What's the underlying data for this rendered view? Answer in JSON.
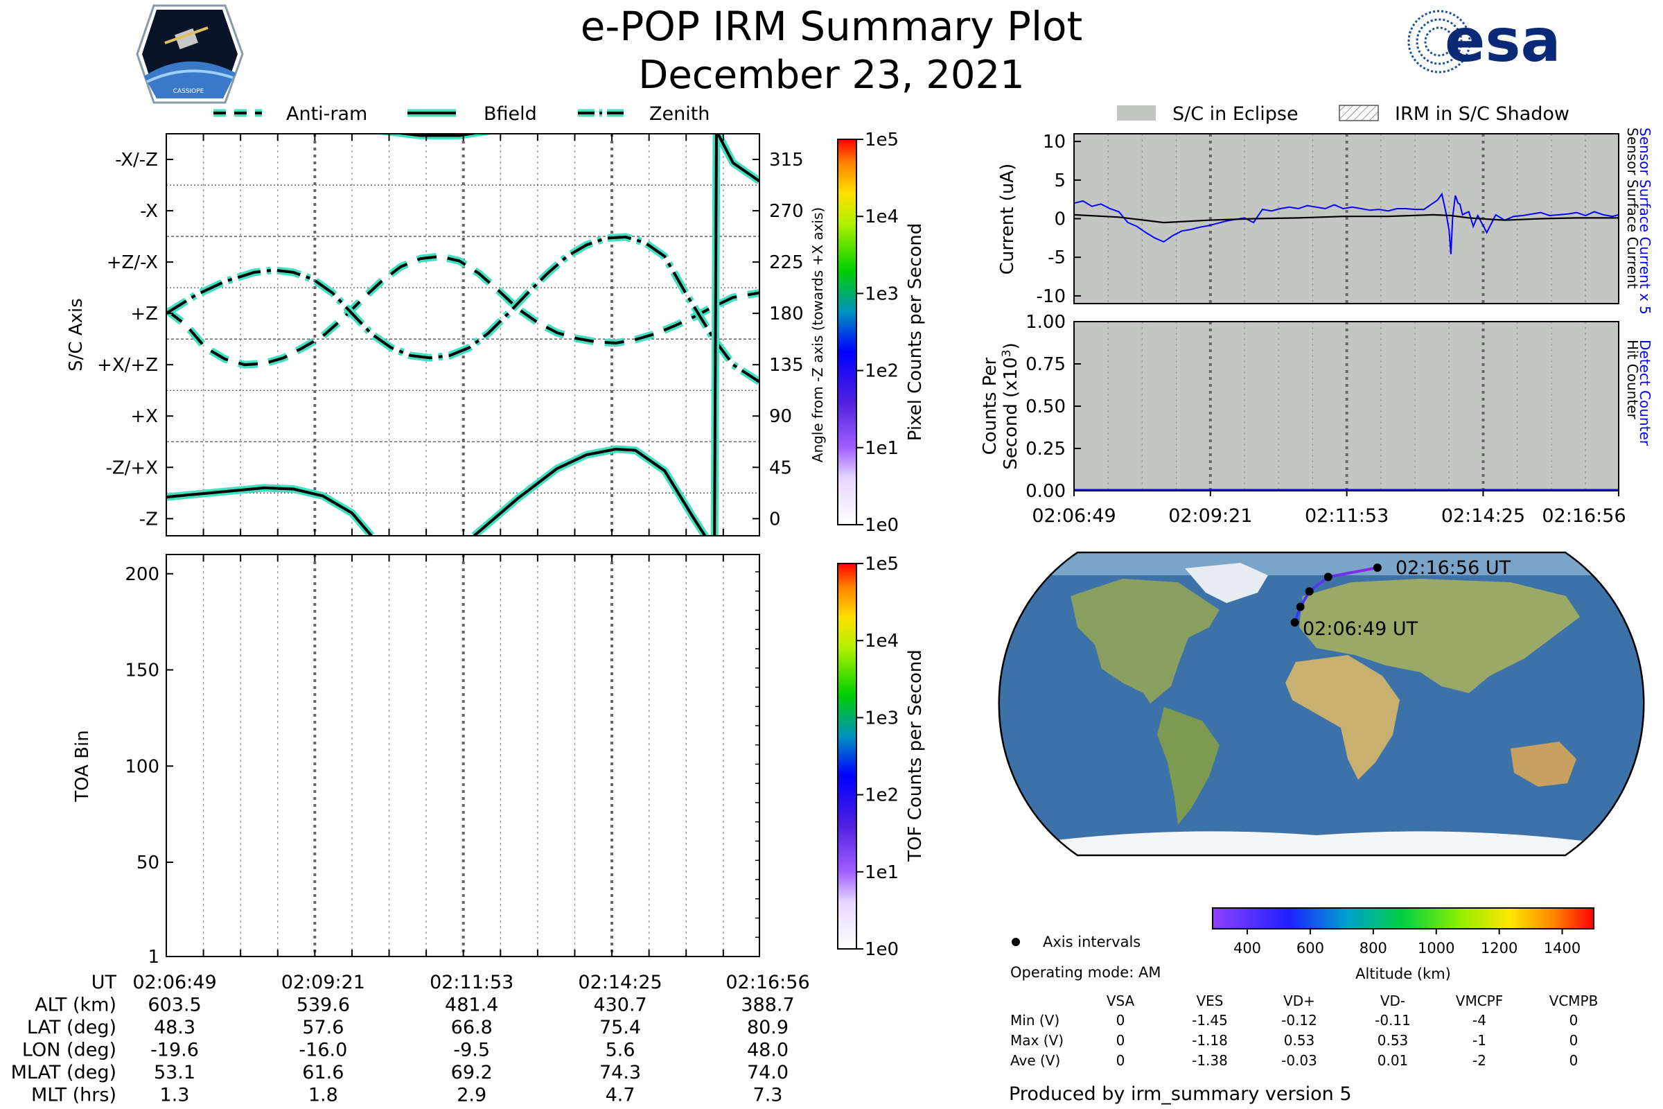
{
  "header": {
    "title": "e-POP IRM Summary Plot",
    "date": "December 23, 2021",
    "left_logo": "cassiope-mission-logo",
    "left_logo_caption": "CASSIOPE",
    "right_logo": "esa-logo",
    "right_logo_text": "esa"
  },
  "colors": {
    "teal": "#40e0c0",
    "eclipse_gray": "#c4c6c4",
    "sensor_blue": "#0000ff",
    "map_track_start": "#2b3cff",
    "map_track_end": "#8a2be2"
  },
  "chart_data": [
    {
      "id": "sc-axis",
      "type": "line",
      "ylabel_left": "S/C Axis",
      "ylabel_right": "Angle from -Z axis (towards +X axis)",
      "ylim": [
        -15,
        337.5
      ],
      "left_ticks": [
        {
          "value": 0,
          "label": "-Z"
        },
        {
          "value": 45,
          "label": "-Z/+X"
        },
        {
          "value": 90,
          "label": "+X"
        },
        {
          "value": 135,
          "label": "+X/+Z"
        },
        {
          "value": 180,
          "label": "+Z"
        },
        {
          "value": 225,
          "label": "+Z/-X"
        },
        {
          "value": 270,
          "label": "-X"
        },
        {
          "value": 315,
          "label": "-X/-Z"
        }
      ],
      "right_ticks": [
        0,
        45,
        90,
        135,
        180,
        225,
        270,
        315
      ],
      "xlim": [
        0,
        607
      ],
      "x_unit": "seconds after 02:06:49 UT",
      "major_x": [
        0,
        152,
        304,
        456,
        607
      ],
      "minor_x": [
        38,
        76,
        114,
        190,
        228,
        266,
        342,
        380,
        418,
        494,
        532,
        570
      ],
      "legend": [
        "Anti-ram",
        "Bfield",
        "Zenith"
      ],
      "series": [
        {
          "name": "Anti-ram",
          "style": "dashed",
          "x": [
            0,
            20,
            40,
            60,
            80,
            100,
            120,
            140,
            160,
            180,
            200,
            220,
            240,
            260,
            280,
            300,
            320,
            340,
            360,
            380,
            400,
            420,
            440,
            460,
            480,
            500,
            520,
            540,
            560,
            580,
            607
          ],
          "y": [
            183,
            170,
            150,
            140,
            135,
            136,
            141,
            150,
            160,
            175,
            192,
            208,
            221,
            228,
            230,
            226,
            215,
            200,
            184,
            172,
            163,
            158,
            155,
            154,
            157,
            162,
            169,
            177,
            186,
            194,
            198
          ]
        },
        {
          "name": "Zenith",
          "style": "dashdot",
          "x": [
            0,
            30,
            60,
            90,
            110,
            130,
            150,
            170,
            190,
            210,
            230,
            250,
            270,
            290,
            310,
            330,
            350,
            370,
            390,
            410,
            430,
            450,
            470,
            490,
            510,
            530,
            560,
            580,
            607
          ],
          "y": [
            180,
            196,
            208,
            216,
            218,
            216,
            210,
            198,
            180,
            162,
            150,
            143,
            141,
            143,
            150,
            163,
            180,
            198,
            215,
            230,
            240,
            246,
            247,
            242,
            230,
            200,
            158,
            135,
            120
          ]
        },
        {
          "name": "Bfield",
          "style": "solid",
          "segments": [
            {
              "x": [
                0,
                50,
                100,
                130,
                160,
                190,
                210
              ],
              "y": [
                19,
                23,
                27,
                26,
                20,
                5,
                -15
              ]
            },
            {
              "x": [
                315,
                360,
                400,
                430,
                460,
                480,
                510,
                540,
                555
              ],
              "y": [
                -15,
                18,
                44,
                56,
                61,
                60,
                42,
                0,
                -20
              ]
            },
            {
              "x": [
                555,
                561,
                563,
                580,
                607
              ],
              "y": [
                -20,
                -15,
                340,
                312,
                296
              ]
            },
            {
              "x": [
                220,
                260,
                300,
                330
              ],
              "y": [
                340,
                336,
                336,
                340
              ]
            }
          ]
        }
      ]
    },
    {
      "id": "colorbar-pixel",
      "type": "heatmap",
      "label": "Pixel Counts per Second",
      "scale": "log",
      "ticks": [
        "1e0",
        "1e1",
        "1e2",
        "1e3",
        "1e4",
        "1e5"
      ]
    },
    {
      "id": "toa",
      "type": "heatmap",
      "ylabel": "TOA Bin",
      "ylim": [
        1,
        210
      ],
      "yticks": [
        1,
        50,
        100,
        150,
        200
      ],
      "values": []
    },
    {
      "id": "colorbar-tof",
      "type": "heatmap",
      "label": "TOF Counts per Second",
      "scale": "log",
      "ticks": [
        "1e0",
        "1e1",
        "1e2",
        "1e3",
        "1e4",
        "1e5"
      ]
    },
    {
      "id": "current",
      "type": "line",
      "ylabel": "Current (uA)",
      "ylim": [
        -11,
        11
      ],
      "yticks": [
        -10,
        -5,
        0,
        5,
        10
      ],
      "right_label_blue": "Sensor Surface Current x 5",
      "right_label_black": "Sensor Surface Current",
      "legend": [
        "S/C in Eclipse",
        "IRM in S/C Shadow"
      ],
      "eclipse_span": [
        0,
        607
      ],
      "series": [
        {
          "name": "Sensor Surface Current x 5",
          "color": "blue",
          "x": [
            0,
            10,
            20,
            30,
            40,
            50,
            60,
            70,
            80,
            90,
            100,
            110,
            120,
            130,
            140,
            150,
            160,
            170,
            180,
            190,
            200,
            210,
            220,
            230,
            240,
            250,
            260,
            270,
            280,
            290,
            300,
            310,
            320,
            330,
            340,
            350,
            360,
            370,
            380,
            390,
            400,
            405,
            410,
            415,
            418,
            420,
            422,
            425,
            428,
            430,
            433,
            436,
            440,
            445,
            450,
            460,
            470,
            480,
            490,
            500,
            510,
            520,
            530,
            540,
            550,
            560,
            570,
            580,
            590,
            600,
            607
          ],
          "y": [
            2,
            2.3,
            1.6,
            1.9,
            1.3,
            0.9,
            -0.5,
            -1.0,
            -1.8,
            -2.5,
            -3.0,
            -2.2,
            -1.6,
            -1.4,
            -1.1,
            -0.9,
            -0.6,
            -0.3,
            -0.1,
            0.1,
            -0.5,
            1.2,
            1.0,
            1.3,
            1.5,
            1.3,
            1.7,
            1.5,
            1.3,
            1.8,
            1.3,
            1.5,
            1.3,
            1.1,
            1.2,
            1.0,
            1.3,
            1.3,
            1.2,
            1.2,
            2.0,
            2.4,
            3.2,
            0.5,
            -1.5,
            -4.6,
            0.2,
            3.0,
            2.0,
            1.9,
            0.5,
            0.7,
            0.9,
            -1.0,
            0.4,
            -1.8,
            0.5,
            -0.2,
            0.3,
            0.4,
            0.6,
            0.8,
            0.4,
            0.5,
            0.6,
            0.8,
            0.4,
            0.9,
            0.5,
            0.3,
            0.5
          ]
        },
        {
          "name": "Sensor Surface Current",
          "color": "black",
          "x": [
            0,
            50,
            100,
            150,
            200,
            250,
            300,
            350,
            400,
            420,
            440,
            480,
            520,
            560,
            607
          ],
          "y": [
            0.5,
            0.2,
            -0.5,
            -0.2,
            0.0,
            0.1,
            0.3,
            0.3,
            0.5,
            0.4,
            0.1,
            -0.2,
            0.0,
            0.1,
            0.1
          ]
        }
      ]
    },
    {
      "id": "counts",
      "type": "line",
      "ylabel_line1": "Counts Per",
      "ylabel_line2": "Second (x10",
      "ylabel_exp": "3",
      "ylabel_close": ")",
      "ylim": [
        0,
        1.0
      ],
      "yticks": [
        "0.00",
        "0.25",
        "0.50",
        "0.75",
        "1.00"
      ],
      "right_label_blue": "Detect Counter",
      "right_label_black": "Hit Counter",
      "xticks": [
        "02:06:49",
        "02:09:21",
        "02:11:53",
        "02:14:25",
        "02:16:56"
      ],
      "series": [
        {
          "name": "Detect Counter",
          "x": [
            0,
            607
          ],
          "y": [
            0,
            0
          ]
        }
      ]
    },
    {
      "id": "orbit-map",
      "type": "scatter",
      "projection": "Robinson",
      "start_label": "02:06:49 UT",
      "end_label": "02:16:56 UT",
      "track": [
        {
          "lon": -19.6,
          "lat": 48.3
        },
        {
          "lon": -16.0,
          "lat": 57.6
        },
        {
          "lon": -9.5,
          "lat": 66.8
        },
        {
          "lon": 5.6,
          "lat": 75.4
        },
        {
          "lon": 48.0,
          "lat": 80.9
        }
      ],
      "altitude_colorbar": {
        "label": "Altitude (km)",
        "ticks": [
          400,
          600,
          800,
          1000,
          1200,
          1400
        ],
        "range": [
          290,
          1500
        ]
      },
      "axis_intervals_label": "Axis intervals"
    }
  ],
  "ephemeris": {
    "rows": [
      {
        "label": "UT",
        "values": [
          "02:06:49",
          "02:09:21",
          "02:11:53",
          "02:14:25",
          "02:16:56"
        ]
      },
      {
        "label": "ALT (km)",
        "values": [
          "603.5",
          "539.6",
          "481.4",
          "430.7",
          "388.7"
        ]
      },
      {
        "label": "LAT (deg)",
        "values": [
          "48.3",
          "57.6",
          "66.8",
          "75.4",
          "80.9"
        ]
      },
      {
        "label": "LON (deg)",
        "values": [
          "-19.6",
          "-16.0",
          "-9.5",
          "5.6",
          "48.0"
        ]
      },
      {
        "label": "MLAT (deg)",
        "values": [
          "53.1",
          "61.6",
          "69.2",
          "74.3",
          "74.0"
        ]
      },
      {
        "label": "MLT (hrs)",
        "values": [
          "1.3",
          "1.8",
          "2.9",
          "4.7",
          "7.3"
        ]
      }
    ]
  },
  "status": {
    "operating_mode": "Operating mode: AM",
    "voltage_headers": [
      "VSA",
      "VES",
      "VD+",
      "VD-",
      "VMCPF",
      "VCMPB"
    ],
    "voltage_rows": [
      {
        "label": "Min (V)",
        "values": [
          "0",
          "-1.45",
          "-0.12",
          "-0.11",
          "-4",
          "0"
        ]
      },
      {
        "label": "Max (V)",
        "values": [
          "0",
          "-1.18",
          "0.53",
          "0.53",
          "-1",
          "0"
        ]
      },
      {
        "label": "Ave (V)",
        "values": [
          "0",
          "-1.38",
          "-0.03",
          "0.01",
          "-2",
          "0"
        ]
      }
    ],
    "produced_by": "Produced by irm_summary version 5"
  }
}
